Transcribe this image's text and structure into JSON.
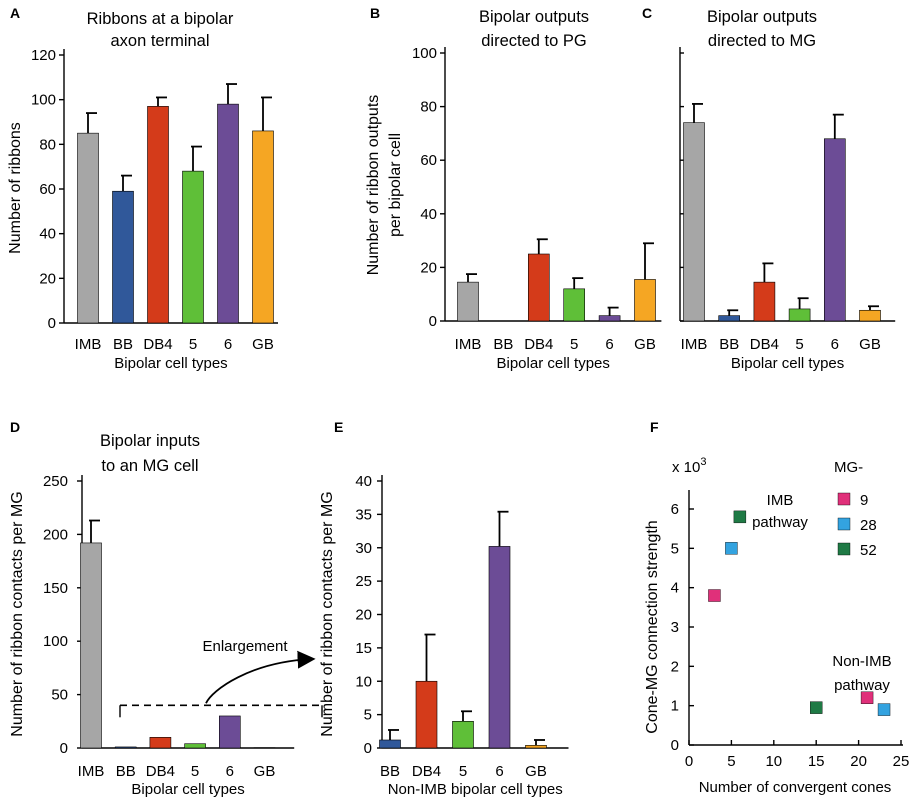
{
  "chart_data": [
    {
      "panel": "A",
      "type": "bar",
      "title": [
        "Ribbons at a bipolar",
        "axon terminal"
      ],
      "xlabel": "Bipolar cell types",
      "ylabel": "Number of ribbons",
      "ylim": [
        0,
        120
      ],
      "yticks": [
        0,
        20,
        40,
        60,
        80,
        100,
        120
      ],
      "categories": [
        "IMB",
        "BB",
        "DB4",
        "5",
        "6",
        "GB"
      ],
      "values": [
        85,
        59,
        97,
        68,
        98,
        86
      ],
      "errors": [
        9,
        7,
        4,
        11,
        9,
        15
      ],
      "colors": [
        "#a6a6a6",
        "#30589a",
        "#d43b1a",
        "#5fbf38",
        "#6c4c96",
        "#f5a623"
      ]
    },
    {
      "panel": "B",
      "type": "bar",
      "title": [
        "Bipolar outputs",
        "directed to PG"
      ],
      "xlabel": "Bipolar cell types",
      "ylabel": [
        "Number of ribbon outputs",
        "per bipolar cell"
      ],
      "ylim": [
        0,
        100
      ],
      "yticks": [
        0,
        20,
        40,
        60,
        80,
        100
      ],
      "categories": [
        "IMB",
        "BB",
        "DB4",
        "5",
        "6",
        "GB"
      ],
      "values": [
        14.5,
        0,
        25,
        12,
        2,
        15.5
      ],
      "errors": [
        3,
        0,
        5.5,
        4,
        3,
        13.5
      ],
      "colors": [
        "#a6a6a6",
        "#30589a",
        "#d43b1a",
        "#5fbf38",
        "#6c4c96",
        "#f5a623"
      ]
    },
    {
      "panel": "C",
      "type": "bar",
      "title": [
        "Bipolar outputs",
        "directed to MG"
      ],
      "xlabel": "Bipolar cell types",
      "ylabel": "",
      "ylim": [
        0,
        100
      ],
      "categories": [
        "IMB",
        "BB",
        "DB4",
        "5",
        "6",
        "GB"
      ],
      "values": [
        74,
        2,
        14.5,
        4.5,
        68,
        4
      ],
      "errors": [
        7,
        2,
        7,
        4,
        9,
        1.5
      ],
      "colors": [
        "#a6a6a6",
        "#30589a",
        "#d43b1a",
        "#5fbf38",
        "#6c4c96",
        "#f5a623"
      ]
    },
    {
      "panel": "D",
      "type": "bar",
      "title": [
        "Bipolar inputs",
        "to an MG cell"
      ],
      "xlabel": "Bipolar cell types",
      "ylabel": "Number of ribbon contacts per MG",
      "ylim": [
        0,
        250
      ],
      "yticks": [
        0,
        50,
        100,
        150,
        200,
        250
      ],
      "categories": [
        "IMB",
        "BB",
        "DB4",
        "5",
        "6",
        "GB"
      ],
      "values": [
        192,
        1,
        10,
        4,
        30,
        0.3
      ],
      "errors": [
        21,
        0,
        0,
        0,
        0,
        0
      ],
      "colors": [
        "#a6a6a6",
        "#30589a",
        "#d43b1a",
        "#5fbf38",
        "#6c4c96",
        "#f5a623"
      ],
      "annotation": "Enlargement"
    },
    {
      "panel": "E",
      "type": "bar",
      "title": [],
      "xlabel": "Non-IMB bipolar cell types",
      "ylabel": "Number of ribbon contacts per MG",
      "ylim": [
        0,
        40
      ],
      "yticks": [
        0,
        5,
        10,
        15,
        20,
        25,
        30,
        35,
        40
      ],
      "categories": [
        "BB",
        "DB4",
        "5",
        "6",
        "GB"
      ],
      "values": [
        1.2,
        10,
        4,
        30.2,
        0.4
      ],
      "errors": [
        1.5,
        7,
        1.5,
        5.2,
        0.8
      ],
      "colors": [
        "#30589a",
        "#d43b1a",
        "#5fbf38",
        "#6c4c96",
        "#f5a623"
      ]
    },
    {
      "panel": "F",
      "type": "scatter",
      "title": [],
      "xlabel": "Number of convergent cones",
      "ylabel": "Cone-MG connection strength",
      "yunit": "x 10",
      "yunit_exp": "3",
      "xlim": [
        0,
        25
      ],
      "ylim": [
        0,
        6
      ],
      "xticks": [
        0,
        5,
        10,
        15,
        20,
        25
      ],
      "yticks": [
        0,
        1,
        2,
        3,
        4,
        5,
        6
      ],
      "legend_title": "MG-",
      "annotations": [
        [
          "IMB",
          "pathway"
        ],
        [
          "Non-IMB",
          "pathway"
        ]
      ],
      "series": [
        {
          "name": "9",
          "color": "#e0307a",
          "points": [
            [
              3,
              3.8
            ],
            [
              21,
              1.2
            ]
          ]
        },
        {
          "name": "28",
          "color": "#33a3e0",
          "points": [
            [
              5,
              5.0
            ],
            [
              23,
              0.9
            ]
          ]
        },
        {
          "name": "52",
          "color": "#1f7a45",
          "points": [
            [
              6,
              5.8
            ],
            [
              15,
              0.95
            ]
          ]
        }
      ]
    }
  ]
}
